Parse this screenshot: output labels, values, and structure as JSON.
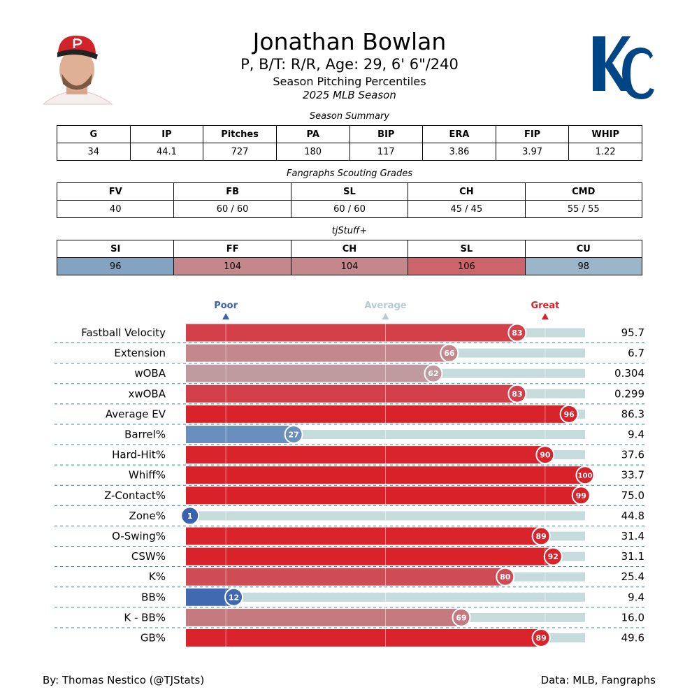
{
  "header": {
    "name": "Jonathan Bowlan",
    "subtitle": "P, B/T: R/R, Age: 29, 6' 6\"/240",
    "title": "Season Pitching Percentiles",
    "season": "2025 MLB Season",
    "team_logo": "KC",
    "team_color": "#004687"
  },
  "season_summary": {
    "caption": "Season Summary",
    "headers": [
      "G",
      "IP",
      "Pitches",
      "PA",
      "BIP",
      "ERA",
      "FIP",
      "WHIP"
    ],
    "values": [
      "34",
      "44.1",
      "727",
      "180",
      "117",
      "3.86",
      "3.97",
      "1.22"
    ]
  },
  "scouting": {
    "caption": "Fangraphs Scouting Grades",
    "headers": [
      "FV",
      "FB",
      "SL",
      "CH",
      "CMD"
    ],
    "values": [
      "40",
      "60 / 60",
      "60 / 60",
      "45 / 45",
      "55 / 55"
    ]
  },
  "tjstuff": {
    "caption": "tjStuff+",
    "headers": [
      "SI",
      "FF",
      "CH",
      "SL",
      "CU"
    ],
    "values": [
      "96",
      "104",
      "104",
      "106",
      "98"
    ],
    "colors": [
      "#84a3c0",
      "#c4888c",
      "#c4888c",
      "#cc656b",
      "#9cb6c9"
    ]
  },
  "chart_data": {
    "type": "bar",
    "orientation": "horizontal",
    "xlim": [
      0,
      100
    ],
    "markers": [
      {
        "label": "Poor",
        "at": 10,
        "color": "#3a62ae"
      },
      {
        "label": "Average",
        "at": 50,
        "color": "#b5ccd0"
      },
      {
        "label": "Great",
        "at": 90,
        "color": "#d92129"
      }
    ],
    "track_color": "#c6dcdc",
    "rows": [
      {
        "label": "Fastball Velocity",
        "percentile": 83,
        "value": "95.7",
        "color": "#d4404a"
      },
      {
        "label": "Extension",
        "percentile": 66,
        "value": "6.7",
        "color": "#c4888c"
      },
      {
        "label": "wOBA",
        "percentile": 62,
        "value": "0.304",
        "color": "#bf9a9e"
      },
      {
        "label": "xwOBA",
        "percentile": 83,
        "value": "0.299",
        "color": "#d4404a"
      },
      {
        "label": "Average EV",
        "percentile": 96,
        "value": "86.3",
        "color": "#d9232b"
      },
      {
        "label": "Barrel%",
        "percentile": 27,
        "value": "9.4",
        "color": "#6b8fbd"
      },
      {
        "label": "Hard-Hit%",
        "percentile": 90,
        "value": "37.6",
        "color": "#d9242c"
      },
      {
        "label": "Whiff%",
        "percentile": 100,
        "value": "33.7",
        "color": "#d92129"
      },
      {
        "label": "Z-Contact%",
        "percentile": 99,
        "value": "75.0",
        "color": "#d92129"
      },
      {
        "label": "Zone%",
        "percentile": 1,
        "value": "44.8",
        "color": "#3a62ae"
      },
      {
        "label": "O-Swing%",
        "percentile": 89,
        "value": "31.4",
        "color": "#d9242c"
      },
      {
        "label": "CSW%",
        "percentile": 92,
        "value": "31.1",
        "color": "#d9232b"
      },
      {
        "label": "K%",
        "percentile": 80,
        "value": "25.4",
        "color": "#d04c55"
      },
      {
        "label": "BB%",
        "percentile": 12,
        "value": "9.4",
        "color": "#4169b2"
      },
      {
        "label": "K - BB%",
        "percentile": 69,
        "value": "16.0",
        "color": "#c47a7f"
      },
      {
        "label": "GB%",
        "percentile": 89,
        "value": "49.6",
        "color": "#d9242c"
      }
    ]
  },
  "footer": {
    "left": "By: Thomas Nestico (@TJStats)",
    "right": "Data: MLB, Fangraphs"
  }
}
